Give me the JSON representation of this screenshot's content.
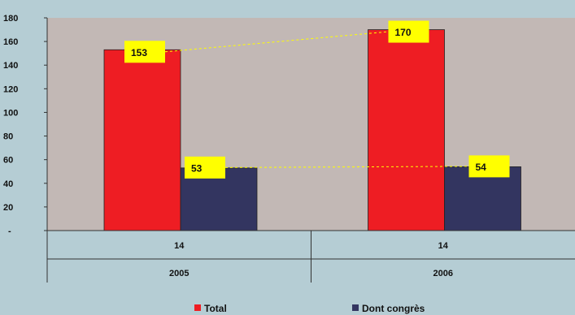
{
  "chart_data": {
    "type": "bar",
    "title": "",
    "xlabel": "",
    "ylabel": "",
    "ylim": [
      0,
      180
    ],
    "y_ticks": [
      "-",
      "20",
      "40",
      "60",
      "80",
      "100",
      "120",
      "140",
      "160",
      "180"
    ],
    "grid": false,
    "categories": [
      "2005",
      "2006"
    ],
    "category_sublabels": [
      "14",
      "14"
    ],
    "series": [
      {
        "name": "Total",
        "values": [
          153,
          170
        ],
        "color": "#ee1d23"
      },
      {
        "name": "Dont congrès",
        "values": [
          53,
          54
        ],
        "color": "#333560"
      }
    ],
    "data_labels": [
      [
        "153",
        "170"
      ],
      [
        "53",
        "54"
      ]
    ],
    "label_box_color": "#ffff00",
    "connector_color": "#ffff00",
    "plot_background": "#c2b8b5",
    "legend_position": "bottom"
  }
}
